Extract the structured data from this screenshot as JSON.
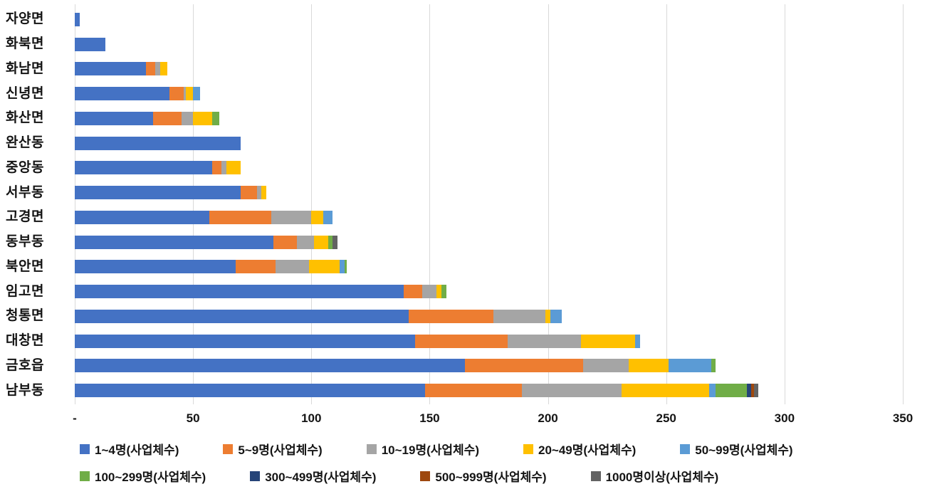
{
  "chart_data": {
    "type": "bar",
    "orientation": "horizontal",
    "stacked": true,
    "title": "",
    "xlabel": "",
    "ylabel": "",
    "grid": true,
    "categories_top_to_bottom": [
      "자양면",
      "화북면",
      "화남면",
      "신녕면",
      "화산면",
      "완산동",
      "중앙동",
      "서부동",
      "고경면",
      "동부동",
      "북안면",
      "임고면",
      "청통면",
      "대창면",
      "금호읍",
      "남부동"
    ],
    "series": [
      {
        "name": "1~4명(사업체수)",
        "color": "#4472C4",
        "values": [
          2,
          13,
          30,
          40,
          33,
          70,
          58,
          70,
          57,
          84,
          68,
          139,
          141,
          144,
          165,
          148
        ]
      },
      {
        "name": "5~9명(사업체수)",
        "color": "#ED7D31",
        "values": [
          0,
          0,
          4,
          6,
          12,
          0,
          4,
          7,
          26,
          10,
          17,
          8,
          36,
          39,
          50,
          41
        ]
      },
      {
        "name": "10~19명(사업체수)",
        "color": "#A5A5A5",
        "values": [
          0,
          0,
          2,
          1,
          5,
          0,
          2,
          2,
          17,
          7,
          14,
          6,
          22,
          31,
          19,
          42
        ]
      },
      {
        "name": "20~49명(사업체수)",
        "color": "#FFC000",
        "values": [
          0,
          0,
          3,
          3,
          8,
          0,
          6,
          2,
          5,
          6,
          13,
          2,
          2,
          23,
          17,
          37
        ]
      },
      {
        "name": "50~99명(사업체수)",
        "color": "#5B9BD5",
        "values": [
          0,
          0,
          0,
          3,
          0,
          0,
          0,
          0,
          4,
          0,
          2,
          0,
          5,
          2,
          18,
          3
        ]
      },
      {
        "name": "100~299명(사업체수)",
        "color": "#70AD47",
        "values": [
          0,
          0,
          0,
          0,
          3,
          0,
          0,
          0,
          0,
          2,
          1,
          2,
          0,
          0,
          2,
          13
        ]
      },
      {
        "name": "300~499명(사업체수)",
        "color": "#264478",
        "values": [
          0,
          0,
          0,
          0,
          0,
          0,
          0,
          0,
          0,
          0,
          0,
          0,
          0,
          0,
          0,
          2
        ]
      },
      {
        "name": "500~999명(사업체수)",
        "color": "#9E480E",
        "values": [
          0,
          0,
          0,
          0,
          0,
          0,
          0,
          0,
          0,
          0,
          0,
          0,
          0,
          0,
          0,
          1
        ]
      },
      {
        "name": "1000명이상(사업체수)",
        "color": "#636363",
        "values": [
          0,
          0,
          0,
          0,
          0,
          0,
          0,
          0,
          0,
          2,
          0,
          0,
          0,
          0,
          0,
          2
        ]
      }
    ],
    "x_axis": {
      "min": 0,
      "max": 350,
      "tick_interval": 50,
      "tick_labels": [
        "-",
        "50",
        "100",
        "150",
        "200",
        "250",
        "300",
        "350"
      ]
    },
    "legend_rows": [
      [
        "1~4명(사업체수)",
        "5~9명(사업체수)",
        "10~19명(사업체수)",
        "20~49명(사업체수)",
        "50~99명(사업체수)"
      ],
      [
        "100~299명(사업체수)",
        "300~499명(사업체수)",
        "500~999명(사업체수)",
        "1000명이상(사업체수)"
      ]
    ]
  }
}
